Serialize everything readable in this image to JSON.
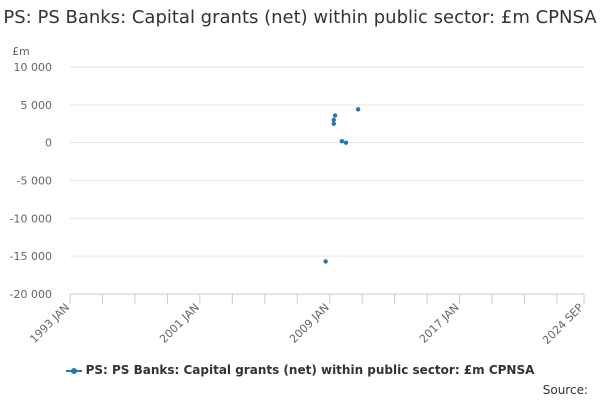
{
  "chart_data": {
    "type": "scatter",
    "title": "PS: PS Banks: Capital grants (net) within public sector: £m CPNSA",
    "ylabel": "£m",
    "xlabel": "",
    "ylim": [
      -20000,
      10000
    ],
    "xlim": [
      "1993-01",
      "2024-09"
    ],
    "y_ticks": [
      {
        "value": 10000,
        "label": "10 000"
      },
      {
        "value": 5000,
        "label": "5 000"
      },
      {
        "value": 0,
        "label": "0"
      },
      {
        "value": -5000,
        "label": "-5 000"
      },
      {
        "value": -10000,
        "label": "-10 000"
      },
      {
        "value": -15000,
        "label": "-15 000"
      },
      {
        "value": -20000,
        "label": "-20 000"
      }
    ],
    "x_ticks": [
      {
        "date": "1993-01",
        "label": "1993 JAN"
      },
      {
        "date": "2001-01",
        "label": "2001 JAN"
      },
      {
        "date": "2009-01",
        "label": "2009 JAN"
      },
      {
        "date": "2017-01",
        "label": "2017 JAN"
      },
      {
        "date": "2024-09",
        "label": "2024 SEP"
      }
    ],
    "series": [
      {
        "name": "PS: PS Banks: Capital grants (net) within public sector: £m CPNSA",
        "color": "#1f77b4",
        "points": [
          {
            "x": "2008-10",
            "y": -15700
          },
          {
            "x": "2009-04",
            "y": 2500
          },
          {
            "x": "2009-04",
            "y": 3000
          },
          {
            "x": "2009-05",
            "y": 3600
          },
          {
            "x": "2009-10",
            "y": 200
          },
          {
            "x": "2010-01",
            "y": 0
          },
          {
            "x": "2010-10",
            "y": 4400
          }
        ]
      }
    ],
    "grid": true,
    "legend_position": "bottom"
  },
  "footer": {
    "source_label": "Source:"
  }
}
